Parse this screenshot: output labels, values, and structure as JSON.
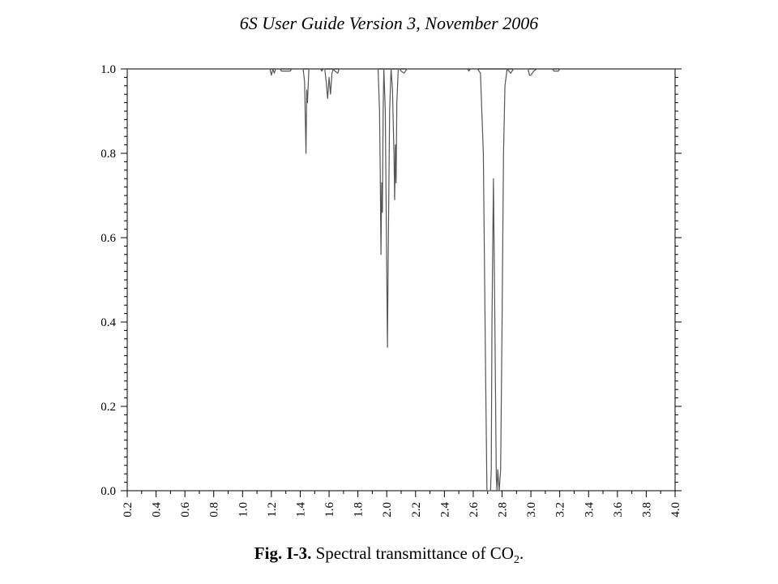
{
  "header": {
    "text": "6S User Guide Version 3, November 2006"
  },
  "caption": {
    "label": "Fig. I-3.",
    "text": " Spectral transmittance of CO",
    "subscript": "2",
    "suffix": "."
  },
  "chart_data": {
    "type": "line",
    "title": "",
    "xlabel": "",
    "ylabel": "",
    "xlim": [
      0.2,
      4.0
    ],
    "ylim": [
      0.0,
      1.0
    ],
    "x_ticks": [
      "0.2",
      "0.4",
      "0.6",
      "0.8",
      "1.0",
      "1.2",
      "1.4",
      "1.6",
      "1.8",
      "2.0",
      "2.2",
      "2.4",
      "2.6",
      "2.8",
      "3.0",
      "3.2",
      "3.4",
      "3.6",
      "3.8",
      "4.0"
    ],
    "y_ticks": [
      "0.0",
      "0.2",
      "0.4",
      "0.6",
      "0.8",
      "1.0"
    ],
    "grid": false,
    "series": [
      {
        "color": "#555555",
        "points": [
          [
            0.2,
            1.0
          ],
          [
            1.19,
            1.0
          ],
          [
            1.2,
            0.985
          ],
          [
            1.21,
            1.0
          ],
          [
            1.22,
            0.99
          ],
          [
            1.23,
            1.0
          ],
          [
            1.26,
            1.0
          ],
          [
            1.27,
            0.995
          ],
          [
            1.33,
            0.995
          ],
          [
            1.34,
            1.0
          ],
          [
            1.42,
            1.0
          ],
          [
            1.43,
            0.97
          ],
          [
            1.44,
            0.8
          ],
          [
            1.445,
            0.95
          ],
          [
            1.45,
            0.92
          ],
          [
            1.46,
            1.0
          ],
          [
            1.54,
            1.0
          ],
          [
            1.55,
            0.995
          ],
          [
            1.56,
            1.0
          ],
          [
            1.57,
            1.0
          ],
          [
            1.58,
            0.97
          ],
          [
            1.59,
            0.93
          ],
          [
            1.6,
            0.98
          ],
          [
            1.61,
            0.94
          ],
          [
            1.62,
            0.99
          ],
          [
            1.63,
            1.0
          ],
          [
            1.64,
            0.995
          ],
          [
            1.66,
            0.99
          ],
          [
            1.67,
            1.0
          ],
          [
            1.94,
            1.0
          ],
          [
            1.95,
            0.9
          ],
          [
            1.955,
            0.75
          ],
          [
            1.96,
            0.56
          ],
          [
            1.965,
            0.73
          ],
          [
            1.97,
            0.66
          ],
          [
            1.975,
            0.9
          ],
          [
            1.98,
            1.0
          ],
          [
            1.99,
            0.9
          ],
          [
            2.0,
            0.52
          ],
          [
            2.005,
            0.34
          ],
          [
            2.01,
            0.55
          ],
          [
            2.02,
            0.9
          ],
          [
            2.03,
            1.0
          ],
          [
            2.04,
            0.95
          ],
          [
            2.05,
            0.8
          ],
          [
            2.055,
            0.69
          ],
          [
            2.06,
            0.82
          ],
          [
            2.065,
            0.73
          ],
          [
            2.07,
            0.92
          ],
          [
            2.08,
            1.0
          ],
          [
            2.09,
            1.0
          ],
          [
            2.1,
            0.995
          ],
          [
            2.12,
            0.99
          ],
          [
            2.14,
            1.0
          ],
          [
            2.56,
            1.0
          ],
          [
            2.57,
            0.995
          ],
          [
            2.58,
            1.0
          ],
          [
            2.63,
            1.0
          ],
          [
            2.65,
            0.99
          ],
          [
            2.67,
            0.8
          ],
          [
            2.685,
            0.3
          ],
          [
            2.695,
            0.0
          ],
          [
            2.72,
            0.0
          ],
          [
            2.725,
            0.05
          ],
          [
            2.73,
            0.4
          ],
          [
            2.74,
            0.74
          ],
          [
            2.75,
            0.4
          ],
          [
            2.76,
            0.03
          ],
          [
            2.765,
            0.0
          ],
          [
            2.77,
            0.05
          ],
          [
            2.78,
            0.0
          ],
          [
            2.79,
            0.05
          ],
          [
            2.8,
            0.4
          ],
          [
            2.81,
            0.8
          ],
          [
            2.82,
            0.96
          ],
          [
            2.835,
            1.0
          ],
          [
            2.86,
            0.99
          ],
          [
            2.88,
            1.0
          ],
          [
            2.98,
            1.0
          ],
          [
            2.99,
            0.985
          ],
          [
            3.0,
            0.985
          ],
          [
            3.01,
            0.99
          ],
          [
            3.02,
            0.995
          ],
          [
            3.04,
            1.0
          ],
          [
            3.15,
            1.0
          ],
          [
            3.16,
            0.995
          ],
          [
            3.19,
            0.995
          ],
          [
            3.2,
            1.0
          ],
          [
            4.0,
            1.0
          ]
        ]
      }
    ]
  }
}
